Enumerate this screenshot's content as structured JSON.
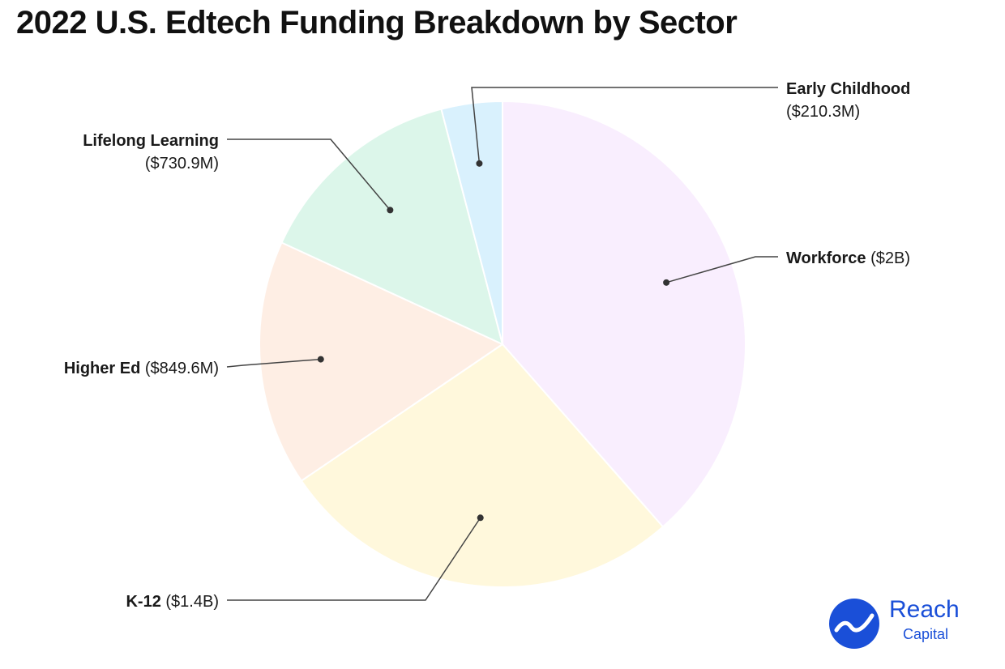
{
  "title": "2022 U.S. Edtech Funding Breakdown by Sector",
  "chart_data": {
    "type": "pie",
    "title": "2022 U.S. Edtech Funding Breakdown by Sector",
    "unit": "USD millions",
    "slices": [
      {
        "name": "Workforce",
        "label": "($2B)",
        "value": 2000,
        "color": "#f9eefe"
      },
      {
        "name": "K-12",
        "label": "($1.4B)",
        "value": 1400,
        "color": "#fff8dc"
      },
      {
        "name": "Higher Ed",
        "label": "($849.6M)",
        "value": 849.6,
        "color": "#feeee4"
      },
      {
        "name": "Lifelong Learning",
        "label": "($730.9M)",
        "value": 730.9,
        "color": "#dcf6ea"
      },
      {
        "name": "Early Childhood",
        "label": "($210.3M)",
        "value": 210.3,
        "color": "#d9f1fd"
      }
    ],
    "start_angle": "12 o'clock",
    "direction": "clockwise"
  },
  "logo": {
    "name": "Reach",
    "sub": "Capital",
    "icon": "reach-capital-wave-icon",
    "color": "#1a4fd8"
  }
}
